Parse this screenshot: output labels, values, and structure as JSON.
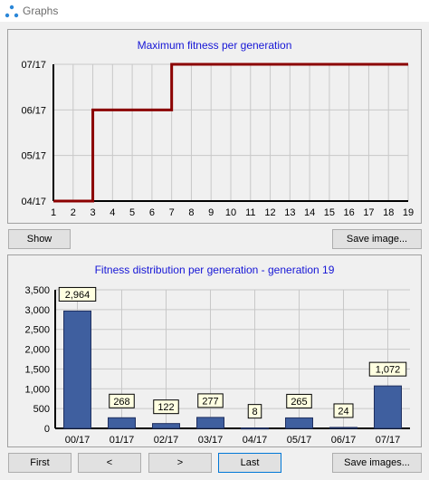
{
  "window": {
    "title": "Graphs"
  },
  "top_panel": {
    "title": "Maximum fitness per generation",
    "show_label": "Show",
    "save_label": "Save image..."
  },
  "bottom_panel": {
    "title": "Fitness distribution per generation - generation 19",
    "first_label": "First",
    "prev_label": "<",
    "next_label": ">",
    "last_label": "Last",
    "save_label": "Save images..."
  },
  "colors": {
    "line": "#8b0000",
    "bar": "#3f5f9f",
    "title": "#1616d6",
    "focus": "#0078d7"
  },
  "chart_data": [
    {
      "type": "line",
      "title": "Maximum fitness per generation",
      "x": [
        1,
        2,
        3,
        4,
        5,
        6,
        7,
        8,
        9,
        10,
        11,
        12,
        13,
        14,
        15,
        16,
        17,
        18,
        19
      ],
      "y_categories": [
        "04/17",
        "05/17",
        "06/17",
        "07/17"
      ],
      "series": [
        {
          "values": [
            0,
            0,
            2,
            2,
            2,
            2,
            3,
            3,
            3,
            3,
            3,
            3,
            3,
            3,
            3,
            3,
            3,
            3,
            3
          ]
        }
      ],
      "step": true,
      "xlim": [
        1,
        19
      ],
      "grid": true
    },
    {
      "type": "bar",
      "title": "Fitness distribution per generation - generation 19",
      "categories": [
        "00/17",
        "01/17",
        "02/17",
        "03/17",
        "04/17",
        "05/17",
        "06/17",
        "07/17"
      ],
      "values": [
        2964,
        268,
        122,
        277,
        8,
        265,
        24,
        1072
      ],
      "data_labels": [
        "2,964",
        "268",
        "122",
        "277",
        "8",
        "265",
        "24",
        "1,072"
      ],
      "yticks": [
        "0",
        "500",
        "1,000",
        "1,500",
        "2,000",
        "2,500",
        "3,000",
        "3,500"
      ],
      "ylim": [
        0,
        3500
      ],
      "grid": true
    }
  ]
}
